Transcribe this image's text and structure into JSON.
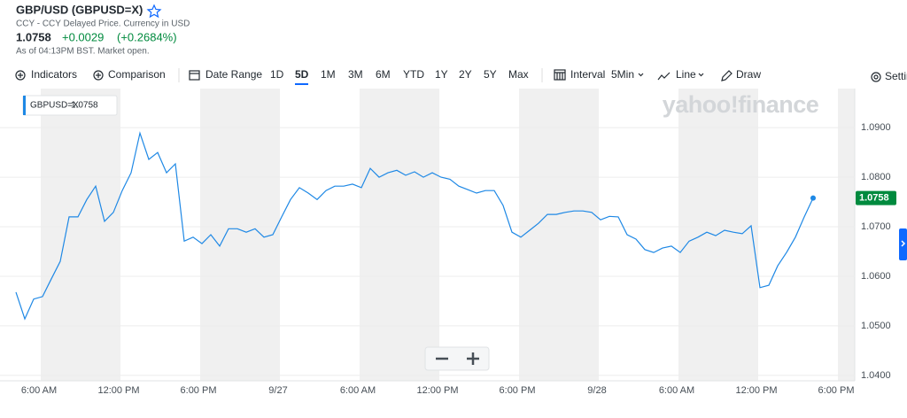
{
  "header": {
    "title": "GBP/USD (GBPUSD=X)",
    "subtitle": "CCY - CCY Delayed Price. Currency in USD",
    "price": "1.0758",
    "change": "+0.0029",
    "change_percent": "(+0.2684%)",
    "as_of": "As of 04:13PM BST. Market open."
  },
  "toolbar": {
    "indicators": "Indicators",
    "comparison": "Comparison",
    "date_range": "Date Range",
    "ranges": [
      "1D",
      "5D",
      "1M",
      "3M",
      "6M",
      "YTD",
      "1Y",
      "2Y",
      "5Y",
      "Max"
    ],
    "interval": "Interval",
    "interval_value": "5Min",
    "line": "Line",
    "draw": "Draw",
    "settings": "Settings"
  },
  "chart_data": {
    "type": "line",
    "watermark": "yahoo!finance",
    "series": [
      {
        "name": "GBPUSD=X",
        "color": "#1e88e5",
        "values": [
          1.0568,
          1.0514,
          1.0554,
          1.0559,
          1.0595,
          1.063,
          1.072,
          1.072,
          1.0755,
          1.0782,
          1.0711,
          1.0729,
          1.0773,
          1.0809,
          1.0889,
          1.0836,
          1.085,
          1.0809,
          1.0827,
          1.0671,
          1.0679,
          1.0666,
          1.0684,
          1.0661,
          1.0696,
          1.0696,
          1.0689,
          1.0696,
          1.0679,
          1.0684,
          1.072,
          1.0755,
          1.0779,
          1.0768,
          1.0755,
          1.0773,
          1.0782,
          1.0782,
          1.0786,
          1.0779,
          1.0818,
          1.08,
          1.0809,
          1.0814,
          1.0804,
          1.0811,
          1.08,
          1.0809,
          1.08,
          1.0796,
          1.0782,
          1.0775,
          1.0768,
          1.0773,
          1.0773,
          1.0743,
          1.0689,
          1.0679,
          1.0693,
          1.0707,
          1.0725,
          1.0725,
          1.0729,
          1.0732,
          1.0732,
          1.0729,
          1.0714,
          1.0721,
          1.072,
          1.0684,
          1.0675,
          1.0654,
          1.0648,
          1.0657,
          1.0661,
          1.0648,
          1.0671,
          1.0679,
          1.0689,
          1.0682,
          1.0693,
          1.0689,
          1.0686,
          1.0702,
          1.0577,
          1.0582,
          1.0621,
          1.0648,
          1.0679,
          1.072,
          1.0758
        ]
      }
    ],
    "ylim": [
      1.0389,
      1.0979
    ],
    "yticks": [
      {
        "value": 1.04,
        "label": "1.0400"
      },
      {
        "value": 1.05,
        "label": "1.0500"
      },
      {
        "value": 1.06,
        "label": "1.0600"
      },
      {
        "value": 1.07,
        "label": "1.0700"
      },
      {
        "value": 1.08,
        "label": "1.0800"
      },
      {
        "value": 1.09,
        "label": "1.0900"
      }
    ],
    "x_labels": [
      "6:00 AM",
      "12:00 PM",
      "6:00 PM",
      "9/27",
      "6:00 AM",
      "12:00 PM",
      "6:00 PM",
      "9/28",
      "6:00 AM",
      "12:00 PM",
      "6:00 PM"
    ],
    "grid": true
  }
}
